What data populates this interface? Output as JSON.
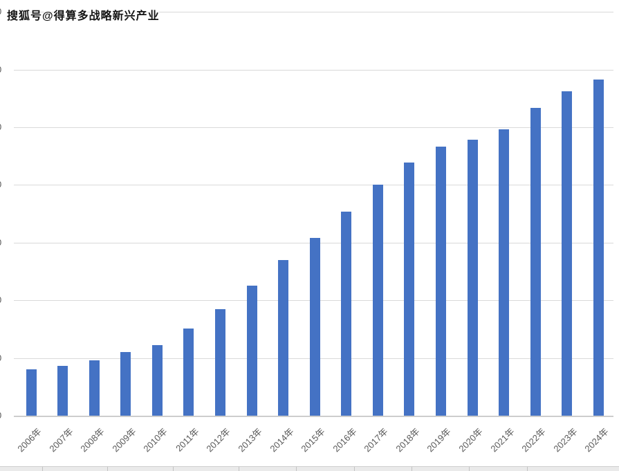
{
  "watermark": {
    "text": "搜狐号@得算多战略新兴产业"
  },
  "chart_data": {
    "type": "bar",
    "title": "",
    "xlabel": "",
    "ylabel": "",
    "categories": [
      "2006年",
      "2007年",
      "2008年",
      "2009年",
      "2010年",
      "2011年",
      "2012年",
      "2013年",
      "2014年",
      "2015年",
      "2016年",
      "2017年",
      "2018年",
      "2019年",
      "2020年",
      "2021年",
      "2022年",
      "2023年",
      "2024年"
    ],
    "values": [
      0.8,
      0.86,
      0.96,
      1.1,
      1.22,
      1.51,
      1.85,
      2.25,
      2.7,
      3.08,
      3.54,
      4.0,
      4.39,
      4.66,
      4.78,
      4.96,
      5.34,
      5.62,
      5.83
    ],
    "value_units": "gridline-intervals (y-axis numeric labels are cropped at the left edge, only a trailing 0 digit is visible per tick)",
    "y_tick_labels_visible": [
      "0",
      "0",
      "0",
      "0",
      "0",
      "0",
      "0",
      "0"
    ],
    "ylim": [
      0,
      7
    ],
    "grid": true,
    "legend": false,
    "bar_color": "#4472C4",
    "gridline_color": "#D9D9D9",
    "axis_label_color": "#595959"
  }
}
